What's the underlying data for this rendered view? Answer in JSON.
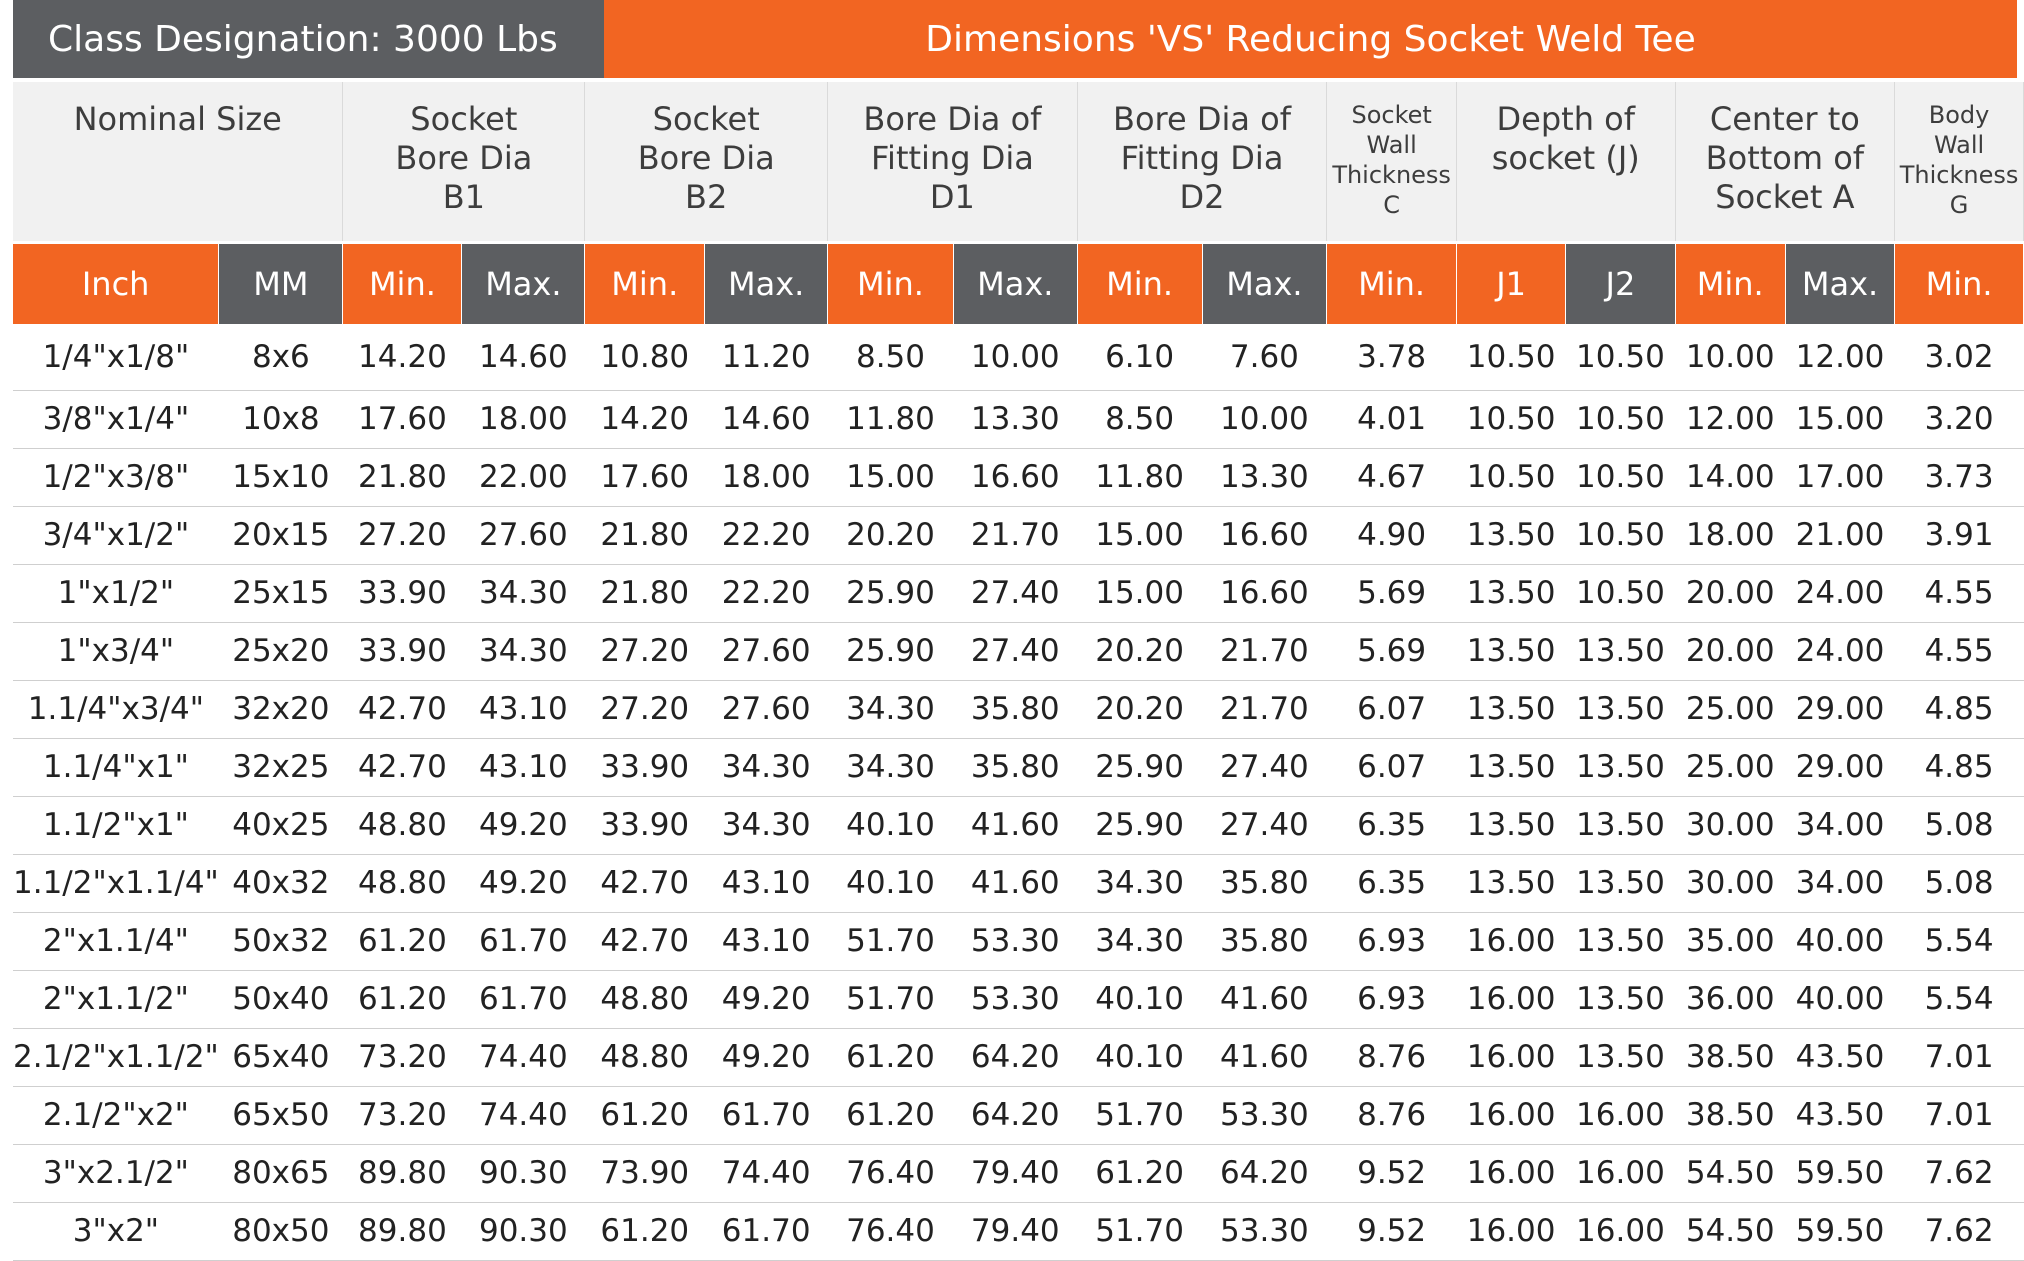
{
  "title": {
    "left": "Class Designation: 3000 Lbs",
    "right": "Dimensions 'VS' Reducing Socket Weld Tee"
  },
  "groups": [
    {
      "label": "Nominal Size",
      "span": 2,
      "small": false
    },
    {
      "label": "Socket\nBore Dia\nB1",
      "span": 2,
      "small": false
    },
    {
      "label": "Socket\nBore Dia\nB2",
      "span": 2,
      "small": false
    },
    {
      "label": "Bore Dia of\nFitting Dia\nD1",
      "span": 2,
      "small": false
    },
    {
      "label": "Bore Dia of\nFitting Dia\nD2",
      "span": 2,
      "small": false
    },
    {
      "label": "Socket\nWall\nThickness\nC",
      "span": 1,
      "small": true
    },
    {
      "label": "Depth of\nsocket (J)",
      "span": 2,
      "small": false
    },
    {
      "label": "Center to\nBottom of\nSocket A",
      "span": 2,
      "small": false
    },
    {
      "label": "Body\nWall\nThickness\nG",
      "span": 1,
      "small": true
    }
  ],
  "subheaders": [
    {
      "label": "Inch",
      "style": "o"
    },
    {
      "label": "MM",
      "style": "g"
    },
    {
      "label": "Min.",
      "style": "o"
    },
    {
      "label": "Max.",
      "style": "g"
    },
    {
      "label": "Min.",
      "style": "o"
    },
    {
      "label": "Max.",
      "style": "g"
    },
    {
      "label": "Min.",
      "style": "o"
    },
    {
      "label": "Max.",
      "style": "g"
    },
    {
      "label": "Min.",
      "style": "o"
    },
    {
      "label": "Max.",
      "style": "g"
    },
    {
      "label": "Min.",
      "style": "o"
    },
    {
      "label": "J1",
      "style": "o"
    },
    {
      "label": "J2",
      "style": "g"
    },
    {
      "label": "Min.",
      "style": "o"
    },
    {
      "label": "Max.",
      "style": "g"
    },
    {
      "label": "Min.",
      "style": "o"
    }
  ],
  "rows": [
    [
      "1/4\"x1/8\"",
      "8x6",
      "14.20",
      "14.60",
      "10.80",
      "11.20",
      "8.50",
      "10.00",
      "6.10",
      "7.60",
      "3.78",
      "10.50",
      "10.50",
      "10.00",
      "12.00",
      "3.02"
    ],
    [
      "3/8\"x1/4\"",
      "10x8",
      "17.60",
      "18.00",
      "14.20",
      "14.60",
      "11.80",
      "13.30",
      "8.50",
      "10.00",
      "4.01",
      "10.50",
      "10.50",
      "12.00",
      "15.00",
      "3.20"
    ],
    [
      "1/2\"x3/8\"",
      "15x10",
      "21.80",
      "22.00",
      "17.60",
      "18.00",
      "15.00",
      "16.60",
      "11.80",
      "13.30",
      "4.67",
      "10.50",
      "10.50",
      "14.00",
      "17.00",
      "3.73"
    ],
    [
      "3/4\"x1/2\"",
      "20x15",
      "27.20",
      "27.60",
      "21.80",
      "22.20",
      "20.20",
      "21.70",
      "15.00",
      "16.60",
      "4.90",
      "13.50",
      "10.50",
      "18.00",
      "21.00",
      "3.91"
    ],
    [
      "1\"x1/2\"",
      "25x15",
      "33.90",
      "34.30",
      "21.80",
      "22.20",
      "25.90",
      "27.40",
      "15.00",
      "16.60",
      "5.69",
      "13.50",
      "10.50",
      "20.00",
      "24.00",
      "4.55"
    ],
    [
      "1\"x3/4\"",
      "25x20",
      "33.90",
      "34.30",
      "27.20",
      "27.60",
      "25.90",
      "27.40",
      "20.20",
      "21.70",
      "5.69",
      "13.50",
      "13.50",
      "20.00",
      "24.00",
      "4.55"
    ],
    [
      "1.1/4\"x3/4\"",
      "32x20",
      "42.70",
      "43.10",
      "27.20",
      "27.60",
      "34.30",
      "35.80",
      "20.20",
      "21.70",
      "6.07",
      "13.50",
      "13.50",
      "25.00",
      "29.00",
      "4.85"
    ],
    [
      "1.1/4\"x1\"",
      "32x25",
      "42.70",
      "43.10",
      "33.90",
      "34.30",
      "34.30",
      "35.80",
      "25.90",
      "27.40",
      "6.07",
      "13.50",
      "13.50",
      "25.00",
      "29.00",
      "4.85"
    ],
    [
      "1.1/2\"x1\"",
      "40x25",
      "48.80",
      "49.20",
      "33.90",
      "34.30",
      "40.10",
      "41.60",
      "25.90",
      "27.40",
      "6.35",
      "13.50",
      "13.50",
      "30.00",
      "34.00",
      "5.08"
    ],
    [
      "1.1/2\"x1.1/4\"",
      "40x32",
      "48.80",
      "49.20",
      "42.70",
      "43.10",
      "40.10",
      "41.60",
      "34.30",
      "35.80",
      "6.35",
      "13.50",
      "13.50",
      "30.00",
      "34.00",
      "5.08"
    ],
    [
      "2\"x1.1/4\"",
      "50x32",
      "61.20",
      "61.70",
      "42.70",
      "43.10",
      "51.70",
      "53.30",
      "34.30",
      "35.80",
      "6.93",
      "16.00",
      "13.50",
      "35.00",
      "40.00",
      "5.54"
    ],
    [
      "2\"x1.1/2\"",
      "50x40",
      "61.20",
      "61.70",
      "48.80",
      "49.20",
      "51.70",
      "53.30",
      "40.10",
      "41.60",
      "6.93",
      "16.00",
      "13.50",
      "36.00",
      "40.00",
      "5.54"
    ],
    [
      "2.1/2\"x1.1/2\"",
      "65x40",
      "73.20",
      "74.40",
      "48.80",
      "49.20",
      "61.20",
      "64.20",
      "40.10",
      "41.60",
      "8.76",
      "16.00",
      "13.50",
      "38.50",
      "43.50",
      "7.01"
    ],
    [
      "2.1/2\"x2\"",
      "65x50",
      "73.20",
      "74.40",
      "61.20",
      "61.70",
      "61.20",
      "64.20",
      "51.70",
      "53.30",
      "8.76",
      "16.00",
      "16.00",
      "38.50",
      "43.50",
      "7.01"
    ],
    [
      "3\"x2.1/2\"",
      "80x65",
      "89.80",
      "90.30",
      "73.90",
      "74.40",
      "76.40",
      "79.40",
      "61.20",
      "64.20",
      "9.52",
      "16.00",
      "16.00",
      "54.50",
      "59.50",
      "7.62"
    ],
    [
      "3\"x2\"",
      "80x50",
      "89.80",
      "90.30",
      "61.20",
      "61.70",
      "76.40",
      "79.40",
      "51.70",
      "53.30",
      "9.52",
      "16.00",
      "16.00",
      "54.50",
      "59.50",
      "7.62"
    ]
  ],
  "colors": {
    "orange": "#f26522",
    "gray": "#5c5e61"
  }
}
